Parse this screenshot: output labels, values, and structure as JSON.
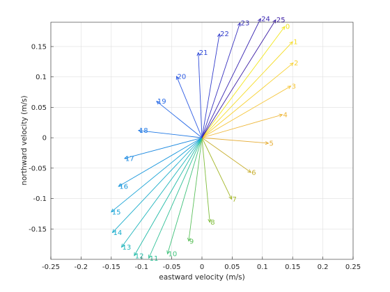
{
  "chart_data": {
    "type": "compass",
    "xlabel": "eastward velocity (m/s)",
    "ylabel": "northward velocity (m/s)",
    "xlim": [
      -0.25,
      0.25
    ],
    "ylim": [
      -0.2,
      0.19
    ],
    "xticks": [
      -0.25,
      -0.2,
      -0.15,
      -0.1,
      -0.05,
      0,
      0.05,
      0.1,
      0.15,
      0.2,
      0.25
    ],
    "xtick_labels": [
      "-0.25",
      "-0.2",
      "-0.15",
      "-0.1",
      "-0.05",
      "0",
      "0.05",
      "0.1",
      "0.15",
      "0.2",
      "0.25"
    ],
    "yticks": [
      -0.15,
      -0.1,
      -0.05,
      0,
      0.05,
      0.1,
      0.15
    ],
    "ytick_labels": [
      "-0.15",
      "-0.1",
      "-0.05",
      "0",
      "0.05",
      "0.1",
      "0.15"
    ],
    "grid": true,
    "origin": [
      0,
      0
    ],
    "vectors": [
      {
        "label": "0",
        "u": 0.137,
        "v": 0.183,
        "color": "#f2e61a"
      },
      {
        "label": "1",
        "u": 0.15,
        "v": 0.158,
        "color": "#f5dc24"
      },
      {
        "label": "2",
        "u": 0.151,
        "v": 0.123,
        "color": "#f7d02e"
      },
      {
        "label": "3",
        "u": 0.147,
        "v": 0.085,
        "color": "#f5c436"
      },
      {
        "label": "4",
        "u": 0.133,
        "v": 0.038,
        "color": "#eeb73a"
      },
      {
        "label": "5",
        "u": 0.11,
        "v": -0.009,
        "color": "#e6ae38"
      },
      {
        "label": "6",
        "u": 0.081,
        "v": -0.057,
        "color": "#c7ae2e"
      },
      {
        "label": "7",
        "u": 0.049,
        "v": -0.101,
        "color": "#a3b626"
      },
      {
        "label": "8",
        "u": 0.013,
        "v": -0.139,
        "color": "#7ebc3a"
      },
      {
        "label": "9",
        "u": -0.022,
        "v": -0.17,
        "color": "#5cc05b"
      },
      {
        "label": "10",
        "u": -0.057,
        "v": -0.191,
        "color": "#3fc17a"
      },
      {
        "label": "11",
        "u": -0.088,
        "v": -0.198,
        "color": "#2dbf95"
      },
      {
        "label": "12",
        "u": -0.112,
        "v": -0.194,
        "color": "#23bba8"
      },
      {
        "label": "13",
        "u": -0.133,
        "v": -0.18,
        "color": "#1db4bb"
      },
      {
        "label": "14",
        "u": -0.148,
        "v": -0.156,
        "color": "#1aaccb"
      },
      {
        "label": "15",
        "u": -0.15,
        "v": -0.122,
        "color": "#19a3d6"
      },
      {
        "label": "16",
        "u": -0.138,
        "v": -0.08,
        "color": "#1896dc"
      },
      {
        "label": "17",
        "u": -0.128,
        "v": -0.034,
        "color": "#1a88e0"
      },
      {
        "label": "18",
        "u": -0.105,
        "v": 0.012,
        "color": "#1f78e4"
      },
      {
        "label": "19",
        "u": -0.075,
        "v": 0.06,
        "color": "#2568e6"
      },
      {
        "label": "20",
        "u": -0.042,
        "v": 0.101,
        "color": "#2a58e2"
      },
      {
        "label": "21",
        "u": -0.006,
        "v": 0.14,
        "color": "#2f4ad8"
      },
      {
        "label": "22",
        "u": 0.029,
        "v": 0.171,
        "color": "#333dcc"
      },
      {
        "label": "23",
        "u": 0.063,
        "v": 0.189,
        "color": "#3831bf"
      },
      {
        "label": "24",
        "u": 0.097,
        "v": 0.196,
        "color": "#3a27b2"
      },
      {
        "label": "25",
        "u": 0.122,
        "v": 0.194,
        "color": "#3d1fa5"
      }
    ]
  }
}
